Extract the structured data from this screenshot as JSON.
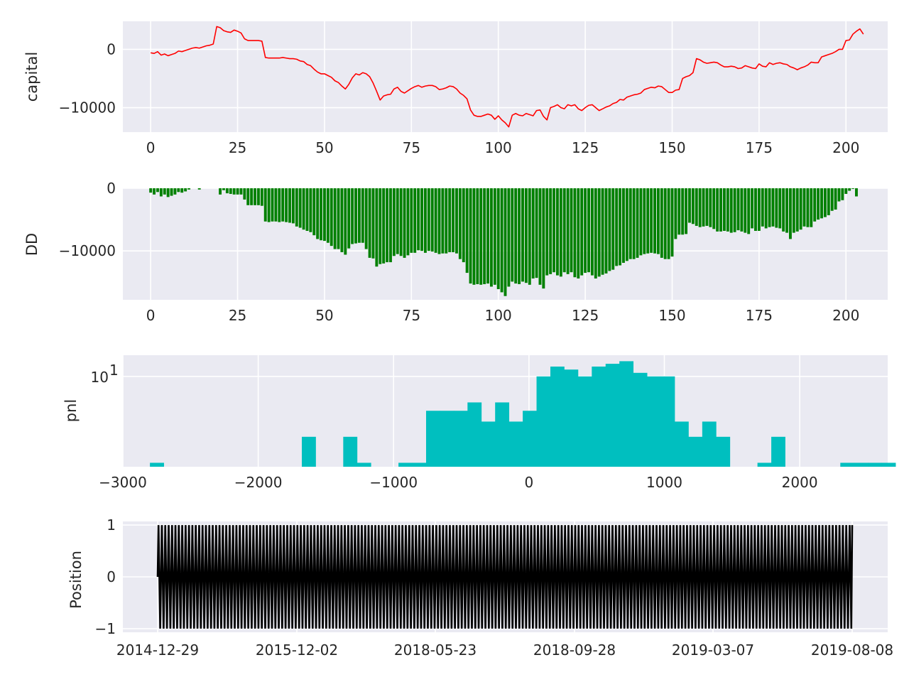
{
  "chart_data": [
    {
      "type": "line",
      "ylabel": "capital",
      "xlim": [
        -8,
        212
      ],
      "ylim": [
        -14200,
        4800
      ],
      "xticks": [
        0,
        25,
        50,
        75,
        100,
        125,
        150,
        175,
        200
      ],
      "yticks": [
        0,
        -10000
      ],
      "ytick_labels": [
        "0",
        "−10000"
      ],
      "grid": true,
      "color": "#ff0000",
      "x_start": 0,
      "values": [
        -600,
        -700,
        -400,
        -1000,
        -800,
        -1100,
        -900,
        -700,
        -300,
        -400,
        -200,
        0,
        200,
        300,
        200,
        400,
        600,
        700,
        900,
        3900,
        3700,
        3200,
        3000,
        2900,
        3300,
        3100,
        2800,
        1800,
        1500,
        1500,
        1500,
        1500,
        1400,
        -1400,
        -1500,
        -1500,
        -1500,
        -1500,
        -1400,
        -1500,
        -1600,
        -1600,
        -1700,
        -2000,
        -2100,
        -2600,
        -2800,
        -3400,
        -3900,
        -4200,
        -4200,
        -4500,
        -4800,
        -5400,
        -5700,
        -6300,
        -6800,
        -6000,
        -4900,
        -4200,
        -4400,
        -4000,
        -4200,
        -4700,
        -5800,
        -7200,
        -8700,
        -8000,
        -7800,
        -7700,
        -6800,
        -6500,
        -7200,
        -7500,
        -7100,
        -6700,
        -6400,
        -6200,
        -6500,
        -6300,
        -6200,
        -6200,
        -6400,
        -6900,
        -6800,
        -6600,
        -6300,
        -6400,
        -6800,
        -7500,
        -7900,
        -8500,
        -10400,
        -11300,
        -11500,
        -11500,
        -11300,
        -11100,
        -11300,
        -12000,
        -11400,
        -12100,
        -12600,
        -13300,
        -11300,
        -11000,
        -11300,
        -11400,
        -11000,
        -11200,
        -11400,
        -10500,
        -10400,
        -11500,
        -12100,
        -10000,
        -9800,
        -9500,
        -10000,
        -10200,
        -9500,
        -9700,
        -9500,
        -10200,
        -10500,
        -10000,
        -9600,
        -9500,
        -10000,
        -10500,
        -10200,
        -9900,
        -9700,
        -9300,
        -9100,
        -8600,
        -8700,
        -8200,
        -8000,
        -7800,
        -7700,
        -7500,
        -6900,
        -6700,
        -6500,
        -6600,
        -6300,
        -6400,
        -6900,
        -7400,
        -7400,
        -7000,
        -6900,
        -5000,
        -4700,
        -4500,
        -4000,
        -1600,
        -1800,
        -2200,
        -2400,
        -2300,
        -2200,
        -2300,
        -2700,
        -3000,
        -3000,
        -2900,
        -3000,
        -3300,
        -3200,
        -2800,
        -3000,
        -3200,
        -3300,
        -2500,
        -2900,
        -3000,
        -2300,
        -2600,
        -2400,
        -2300,
        -2500,
        -2600,
        -3000,
        -3200,
        -3500,
        -3200,
        -3000,
        -2700,
        -2200,
        -2300,
        -2300,
        -1300,
        -1100,
        -900,
        -700,
        -400,
        0,
        0,
        1500,
        1600,
        2600,
        3100,
        3500,
        2600
      ]
    },
    {
      "type": "bar",
      "ylabel": "DD",
      "xlim": [
        -8,
        212
      ],
      "ylim": [
        -17800,
        0
      ],
      "xticks": [
        0,
        25,
        50,
        75,
        100,
        125,
        150,
        175,
        200
      ],
      "yticks": [
        0,
        -10000
      ],
      "ytick_labels": [
        "0",
        "−10000"
      ],
      "grid": true,
      "color": "#008000",
      "x_start": 0,
      "values": [
        -700,
        -1000,
        -600,
        -1300,
        -1000,
        -1400,
        -1200,
        -1000,
        -600,
        -700,
        -500,
        -200,
        0,
        0,
        -200,
        0,
        0,
        0,
        0,
        0,
        -1000,
        -300,
        -800,
        -900,
        -1000,
        -1000,
        -1000,
        -1800,
        -2700,
        -2700,
        -2700,
        -2700,
        -2800,
        -5300,
        -5400,
        -5300,
        -5300,
        -5400,
        -5300,
        -5400,
        -5500,
        -5600,
        -6100,
        -6300,
        -6600,
        -6800,
        -7000,
        -7500,
        -8100,
        -8300,
        -8400,
        -8700,
        -9200,
        -9700,
        -9700,
        -10200,
        -10600,
        -9600,
        -8900,
        -8800,
        -8700,
        -8700,
        -9700,
        -11100,
        -11200,
        -12500,
        -12100,
        -12000,
        -11800,
        -11800,
        -10800,
        -10500,
        -10800,
        -11100,
        -10700,
        -10300,
        -10300,
        -9900,
        -10000,
        -10300,
        -10000,
        -10100,
        -10300,
        -10500,
        -10400,
        -10400,
        -10200,
        -10200,
        -10400,
        -11300,
        -11800,
        -13500,
        -15200,
        -15400,
        -15300,
        -15400,
        -15300,
        -15200,
        -15700,
        -15400,
        -16100,
        -16600,
        -17200,
        -15700,
        -14900,
        -15200,
        -15300,
        -14900,
        -15100,
        -15400,
        -14400,
        -14300,
        -15400,
        -16000,
        -13900,
        -13700,
        -13400,
        -13900,
        -14100,
        -13400,
        -13700,
        -13400,
        -14200,
        -14400,
        -13900,
        -13500,
        -13400,
        -13900,
        -14400,
        -14100,
        -13800,
        -13600,
        -13200,
        -13000,
        -12400,
        -12300,
        -11900,
        -11600,
        -11300,
        -11300,
        -11100,
        -10700,
        -10500,
        -10400,
        -10300,
        -10400,
        -10500,
        -11100,
        -11300,
        -11300,
        -10900,
        -8100,
        -7400,
        -7400,
        -7300,
        -5500,
        -5700,
        -6000,
        -6200,
        -6100,
        -6000,
        -6200,
        -6500,
        -6900,
        -6900,
        -6800,
        -6900,
        -7100,
        -7000,
        -6700,
        -6900,
        -7100,
        -7300,
        -6400,
        -6800,
        -6800,
        -6100,
        -6400,
        -6200,
        -6100,
        -6300,
        -6400,
        -6900,
        -7100,
        -8100,
        -7100,
        -6900,
        -6600,
        -6100,
        -6200,
        -6200,
        -5300,
        -5000,
        -4800,
        -4600,
        -4300,
        -3600,
        -3400,
        -2100,
        -1900,
        -900,
        -400,
        -100,
        -1300
      ]
    },
    {
      "type": "histogram",
      "ylabel": "pnl",
      "yscale": "log",
      "xlim": [
        -3000,
        2650
      ],
      "xticks": [
        -3000,
        -2000,
        -1000,
        0,
        1000,
        2000
      ],
      "xtick_labels": [
        "−3000",
        "−2000",
        "−1000",
        "0",
        "1000",
        "2000"
      ],
      "ytick_label_base": "10",
      "ytick_label_exp": "1",
      "grid": true,
      "color": "#00bfbf",
      "bin_start": -2800,
      "bin_width": 102,
      "counts": [
        1,
        0,
        0,
        0,
        0,
        0,
        0,
        0,
        0,
        0,
        0,
        2,
        0,
        0,
        2,
        1,
        0,
        0,
        1,
        1,
        4,
        4,
        4,
        5,
        3,
        5,
        3,
        4,
        10,
        13,
        12,
        10,
        13,
        14,
        15,
        11,
        10,
        10,
        3,
        2,
        3,
        2,
        0,
        0,
        1,
        2,
        0,
        0,
        0,
        0,
        1,
        1,
        1,
        1,
        0,
        1
      ]
    },
    {
      "type": "line",
      "ylabel": "Position",
      "ylim": [
        -1.07,
        1.07
      ],
      "yticks": [
        1,
        0,
        -1
      ],
      "ytick_labels": [
        "1",
        "0",
        "−1"
      ],
      "xtick_labels": [
        "2014-12-29",
        "2015-12-02",
        "2018-05-23",
        "2018-09-28",
        "2019-03-07",
        "2019-08-08"
      ],
      "grid": true,
      "color": "#000000",
      "n_trades": 205,
      "trade_cycle": [
        0,
        1,
        0,
        -1
      ]
    }
  ]
}
